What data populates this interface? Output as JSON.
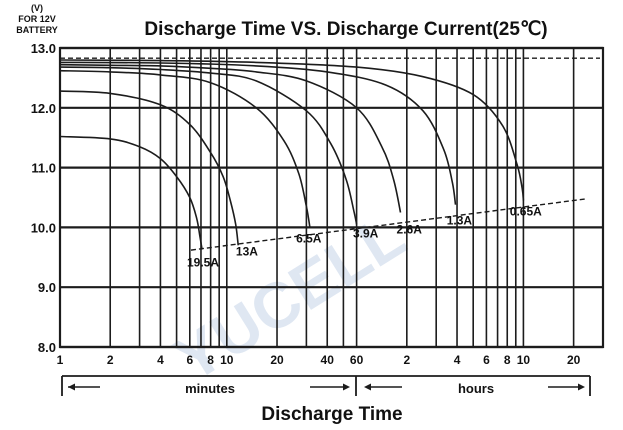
{
  "chart_data": {
    "type": "line",
    "title": "Discharge Time VS. Discharge Current(25℃)",
    "ylabel_lines": [
      "(V)",
      "FOR 12V",
      "BATTERY"
    ],
    "xlabel": "Discharge Time",
    "ylim": [
      8.0,
      13.0
    ],
    "y_ticks": [
      "8.0",
      "9.0",
      "10.0",
      "11.0",
      "12.0",
      "13.0"
    ],
    "x_scale": "log",
    "x_unit": "minutes",
    "xlim": [
      1,
      1800
    ],
    "x_ticks": [
      {
        "label": "1",
        "minutes": 1
      },
      {
        "label": "2",
        "minutes": 2
      },
      {
        "label": "4",
        "minutes": 4
      },
      {
        "label": "6",
        "minutes": 6
      },
      {
        "label": "8",
        "minutes": 8
      },
      {
        "label": "10",
        "minutes": 10
      },
      {
        "label": "20",
        "minutes": 20
      },
      {
        "label": "40",
        "minutes": 40
      },
      {
        "label": "60",
        "minutes": 60
      },
      {
        "label": "2",
        "minutes": 120
      },
      {
        "label": "4",
        "minutes": 240
      },
      {
        "label": "6",
        "minutes": 360
      },
      {
        "label": "8",
        "minutes": 480
      },
      {
        "label": "10",
        "minutes": 600
      },
      {
        "label": "20",
        "minutes": 1200
      }
    ],
    "x_grid_minutes": [
      1,
      2,
      3,
      4,
      5,
      6,
      7,
      8,
      9,
      10,
      20,
      30,
      40,
      50,
      60,
      120,
      180,
      240,
      300,
      360,
      420,
      480,
      540,
      600,
      1200,
      1800
    ],
    "range_labels": [
      "minutes",
      "hours"
    ],
    "grid": true,
    "cutoff_line": {
      "style": "dashed",
      "points": [
        {
          "x": 6.1,
          "y": 9.62
        },
        {
          "x": 1450,
          "y": 10.48
        }
      ]
    },
    "top_dashed_line": {
      "y": 12.83
    },
    "series": [
      {
        "name": "19.5A",
        "x": [
          1,
          2,
          3,
          4,
          5,
          6,
          6.6,
          6.9,
          7.1
        ],
        "y": [
          11.52,
          11.48,
          11.35,
          11.15,
          10.85,
          10.5,
          10.15,
          9.85,
          9.63
        ]
      },
      {
        "name": "13A",
        "x": [
          1,
          2,
          4,
          6,
          8,
          9.5,
          10.5,
          11.3,
          11.7
        ],
        "y": [
          12.28,
          12.24,
          12.05,
          11.72,
          11.25,
          10.85,
          10.45,
          10.05,
          9.7
        ]
      },
      {
        "name": "6.5A",
        "x": [
          1,
          2,
          4,
          8,
          15,
          22,
          27,
          30,
          31.5
        ],
        "y": [
          12.62,
          12.6,
          12.55,
          12.42,
          12.0,
          11.45,
          10.9,
          10.35,
          10.0
        ]
      },
      {
        "name": "3.9A",
        "x": [
          1,
          2,
          4,
          8,
          15,
          30,
          42,
          52,
          58,
          60
        ],
        "y": [
          12.68,
          12.67,
          12.64,
          12.58,
          12.45,
          11.95,
          11.4,
          10.8,
          10.25,
          10.05
        ]
      },
      {
        "name": "2.6A",
        "x": [
          1,
          2,
          4,
          8,
          15,
          30,
          60,
          85,
          100,
          110
        ],
        "y": [
          12.72,
          12.71,
          12.7,
          12.66,
          12.6,
          12.45,
          12.0,
          11.35,
          10.8,
          10.25
        ]
      },
      {
        "name": "1.3A",
        "x": [
          1,
          4,
          15,
          40,
          90,
          150,
          200,
          225,
          235
        ],
        "y": [
          12.76,
          12.75,
          12.7,
          12.6,
          12.38,
          11.95,
          11.3,
          10.75,
          10.38
        ]
      },
      {
        "name": "0.65A",
        "x": [
          1,
          4,
          15,
          60,
          150,
          300,
          450,
          550,
          590,
          600
        ],
        "y": [
          12.8,
          12.79,
          12.76,
          12.68,
          12.52,
          12.22,
          11.7,
          11.05,
          10.65,
          10.45
        ]
      }
    ],
    "curve_labels": [
      {
        "text": "19.5A",
        "x": 7.2,
        "y": 9.35
      },
      {
        "text": "13A",
        "x": 13.2,
        "y": 9.53
      },
      {
        "text": "6.5A",
        "x": 31,
        "y": 9.75
      },
      {
        "text": "3.9A",
        "x": 68,
        "y": 9.83
      },
      {
        "text": "2.6A",
        "x": 124,
        "y": 9.9
      },
      {
        "text": "1.3A",
        "x": 248,
        "y": 10.05
      },
      {
        "text": "0.65A",
        "x": 620,
        "y": 10.2
      }
    ],
    "colors": {
      "grid": "#1c1c1c",
      "curve": "#1c1c1c",
      "text": "#111111",
      "watermark": "#dfe7f2"
    }
  },
  "watermark": "YUCELL"
}
